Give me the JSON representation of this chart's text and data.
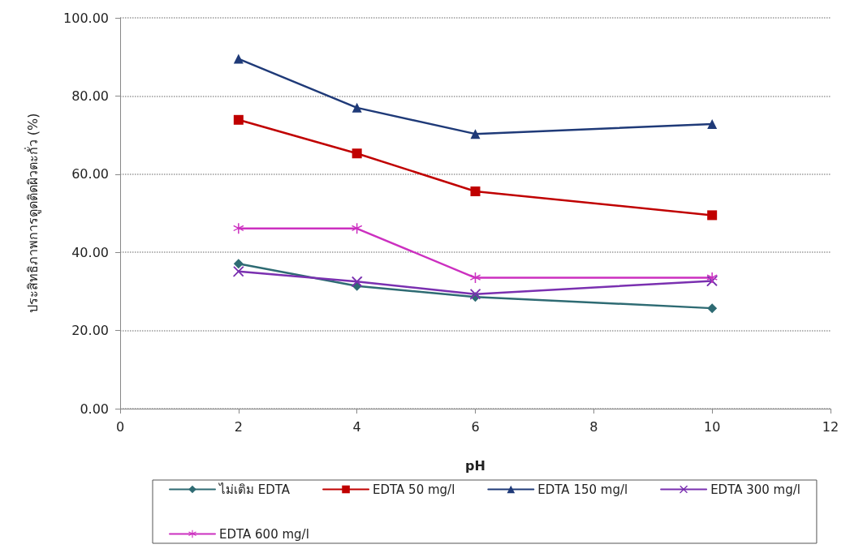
{
  "chart_data": {
    "type": "line",
    "xlabel": "pH",
    "ylabel": "ประสิทธิภาพการดูดติดผิวตะกั่ว (%)",
    "x": [
      2,
      4,
      6,
      10
    ],
    "series": [
      {
        "name": "ไม่เติม EDTA",
        "color": "#2e6b73",
        "marker": "diamond",
        "values": [
          37.1,
          31.4,
          28.6,
          25.7
        ]
      },
      {
        "name": "EDTA 50 mg/l",
        "color": "#c00000",
        "marker": "square",
        "values": [
          73.9,
          65.3,
          55.6,
          49.5
        ]
      },
      {
        "name": "EDTA 150 mg/l",
        "color": "#1f3a78",
        "marker": "triangle",
        "values": [
          89.5,
          77.0,
          70.3,
          72.8
        ]
      },
      {
        "name": "EDTA 300 mg/l",
        "color": "#7a30b0",
        "marker": "cross",
        "values": [
          35.1,
          32.5,
          29.3,
          32.7
        ]
      },
      {
        "name": "EDTA 600 mg/l",
        "color": "#cc30c0",
        "marker": "star",
        "values": [
          46.1,
          46.1,
          33.5,
          33.5
        ]
      }
    ],
    "xlim": [
      0,
      12
    ],
    "xticks": [
      0,
      2,
      4,
      6,
      8,
      10,
      12
    ],
    "ylim": [
      0,
      100
    ],
    "yticks": [
      {
        "value": 0,
        "label": "0.00"
      },
      {
        "value": 20,
        "label": "20.00"
      },
      {
        "value": 40,
        "label": "40.00"
      },
      {
        "value": 60,
        "label": "60.00"
      },
      {
        "value": 80,
        "label": "80.00"
      },
      {
        "value": 100,
        "label": "100.00"
      }
    ],
    "grid": "y",
    "legend": "bottom",
    "line_style": "solid"
  }
}
